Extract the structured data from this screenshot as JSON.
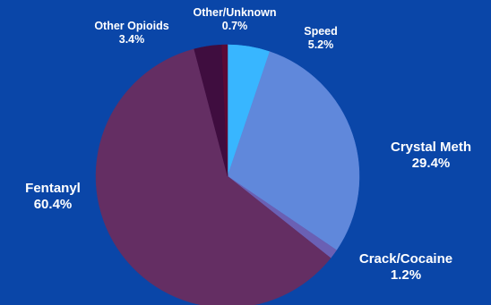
{
  "chart_data": {
    "type": "pie",
    "slices": [
      {
        "label": "Speed",
        "value_label": "5.2%",
        "value": 5.2,
        "color": "#38b6ff"
      },
      {
        "label": "Crystal Meth",
        "value_label": "29.4%",
        "value": 29.4,
        "color": "#6088db"
      },
      {
        "label": "Crack/Cocaine",
        "value_label": "1.2%",
        "value": 1.2,
        "color": "#6a60b4"
      },
      {
        "label": "Fentanyl",
        "value_label": "60.4%",
        "value": 60.4,
        "color": "#642e63"
      },
      {
        "label": "Other Opioids",
        "value_label": "3.4%",
        "value": 3.4,
        "color": "#3f0d3f"
      },
      {
        "label": "Other/Unknown",
        "value_label": "0.7%",
        "value": 0.7,
        "color": "#5a0a35"
      }
    ],
    "start_angle": "12 o'clock",
    "direction": "clockwise",
    "background": "#0a46a8"
  }
}
